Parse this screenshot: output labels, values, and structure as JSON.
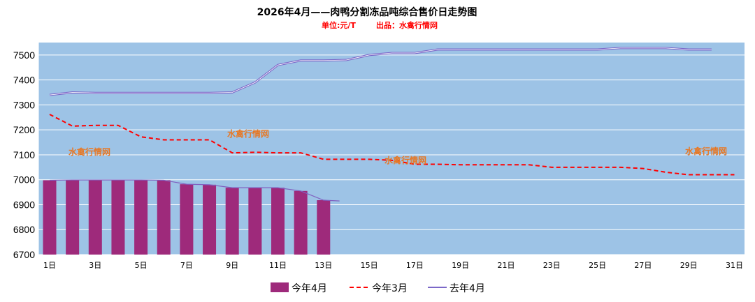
{
  "chart_data": {
    "type": "bar+line",
    "title": "2026年4月——肉鸭分割冻品吨综合售价日走势图",
    "subtitle_unit": "单位:元/T",
    "subtitle_source": "出品：水禽行情网",
    "watermark_text": "水禽行情网",
    "ylim": [
      6700,
      7550
    ],
    "yticks": [
      6700,
      6800,
      6900,
      7000,
      7100,
      7200,
      7300,
      7400,
      7500
    ],
    "x_days": [
      1,
      2,
      3,
      4,
      5,
      6,
      7,
      8,
      9,
      10,
      11,
      12,
      13,
      14,
      15,
      16,
      17,
      18,
      19,
      20,
      21,
      22,
      23,
      24,
      25,
      26,
      27,
      28,
      29,
      30,
      31
    ],
    "x_tick_labels": [
      "1日",
      "3日",
      "5日",
      "7日",
      "9日",
      "11日",
      "13日",
      "15日",
      "17日",
      "19日",
      "21日",
      "23日",
      "25日",
      "27日",
      "29日",
      "31日"
    ],
    "x_tick_days": [
      1,
      3,
      5,
      7,
      9,
      11,
      13,
      15,
      17,
      19,
      21,
      23,
      25,
      27,
      29,
      31
    ],
    "series": [
      {
        "name": "今年4月",
        "kind": "bar",
        "color": "#9e2a7b",
        "trend_color": "#8060c0",
        "values": [
          6998,
          6999,
          6999,
          6999,
          6999,
          6998,
          6982,
          6980,
          6968,
          6968,
          6968,
          6955,
          6918
        ]
      },
      {
        "name": "今年3月",
        "kind": "line",
        "color": "#ff0000",
        "values": [
          7262,
          7215,
          7218,
          7218,
          7172,
          7160,
          7160,
          7160,
          7108,
          7110,
          7108,
          7108,
          7082,
          7082,
          7082,
          7078,
          7062,
          7062,
          7060,
          7060,
          7060,
          7060,
          7050,
          7050,
          7050,
          7050,
          7045,
          7030,
          7020,
          7020,
          7020
        ]
      },
      {
        "name": "去年4月",
        "kind": "line",
        "color": "#7b68c8",
        "values": [
          7340,
          7350,
          7348,
          7348,
          7348,
          7348,
          7348,
          7348,
          7350,
          7390,
          7460,
          7478,
          7478,
          7480,
          7500,
          7508,
          7508,
          7522,
          7522,
          7522,
          7522,
          7522,
          7522,
          7522,
          7522,
          7528,
          7528,
          7528,
          7522,
          7522
        ]
      }
    ],
    "legend_position": "bottom",
    "grid": true,
    "plot_background": "#9dc3e6"
  }
}
